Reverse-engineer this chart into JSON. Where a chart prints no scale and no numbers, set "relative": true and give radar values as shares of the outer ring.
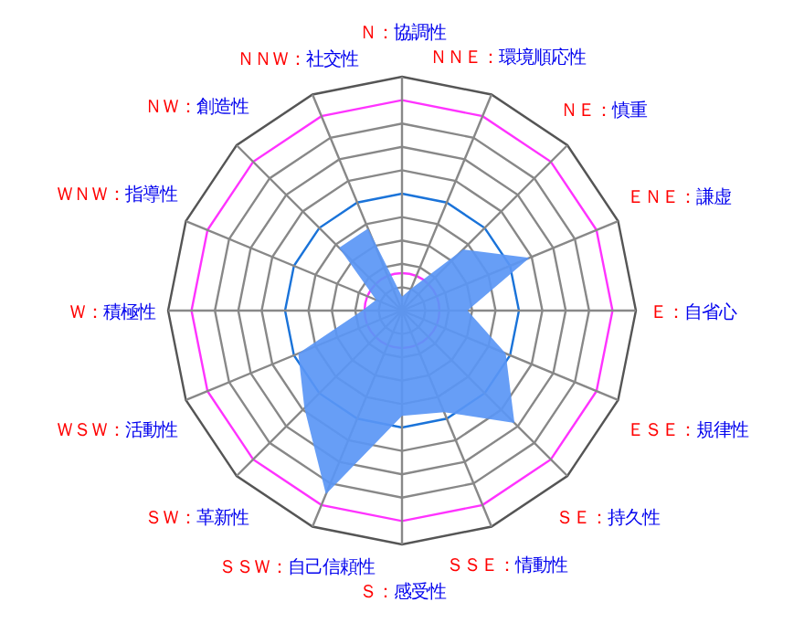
{
  "chart_data": {
    "type": "radar",
    "relative": true,
    "categories": [
      "Ｎ：協調性",
      "ＮＮＥ：環境順応性",
      "ＮＥ：慎重",
      "ＥＮＥ：謙虚",
      "Ｅ：自省心",
      "ＥＳＥ：規律性",
      "ＳＥ：持久性",
      "ＳＳＥ：情動性",
      "Ｓ：感受性",
      "ＳＳＷ：自己信頼性",
      "ＳＷ：革新性",
      "ＷＳＷ：活動性",
      "Ｗ：積極性",
      "ＷＮＷ：指導性",
      "ＮＷ：創造性",
      "ＮＮＷ：社交性"
    ],
    "series": [
      {
        "color": "#5a96f5",
        "values": [
          0.06,
          0.1,
          0.37,
          0.59,
          0.28,
          0.48,
          0.68,
          0.47,
          0.45,
          0.85,
          0.59,
          0.48,
          0.17,
          0.12,
          0.38,
          0.38
        ]
      }
    ]
  }
}
